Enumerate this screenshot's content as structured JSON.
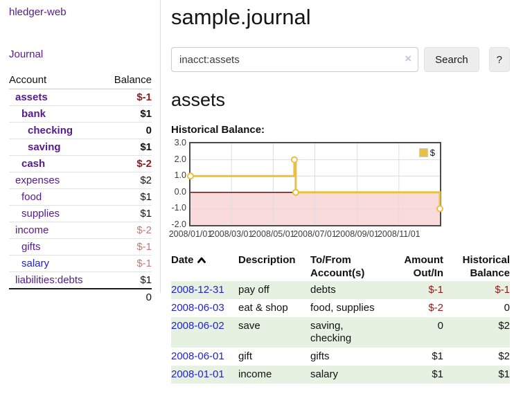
{
  "app": {
    "brand": "hledger-web",
    "nav_journal": "Journal"
  },
  "sidebar": {
    "accounts_header": {
      "account": "Account",
      "balance": "Balance"
    },
    "accounts": [
      {
        "name": "assets",
        "level": 1,
        "balance": "$-1",
        "row_bold": true,
        "neg": "strong",
        "link": "purple"
      },
      {
        "name": "bank",
        "level": 2,
        "balance": "$1",
        "row_bold": true,
        "neg": null,
        "link": "purple"
      },
      {
        "name": "checking",
        "level": 3,
        "balance": "0",
        "row_bold": true,
        "neg": null,
        "link": "purple"
      },
      {
        "name": "saving",
        "level": 3,
        "balance": "$1",
        "row_bold": true,
        "neg": null,
        "link": "purple"
      },
      {
        "name": "cash",
        "level": 2,
        "balance": "$-2",
        "row_bold": true,
        "neg": "strong",
        "link": "purple"
      },
      {
        "name": "expenses",
        "level": 1,
        "balance": "$2",
        "row_bold": false,
        "neg": null,
        "link": "purple"
      },
      {
        "name": "food",
        "level": 2,
        "balance": "$1",
        "row_bold": false,
        "neg": null,
        "link": "purple"
      },
      {
        "name": "supplies",
        "level": 2,
        "balance": "$1",
        "row_bold": false,
        "neg": null,
        "link": "purple"
      },
      {
        "name": "income",
        "level": 1,
        "balance": "$-2",
        "row_bold": false,
        "neg": "soft",
        "link": "purple"
      },
      {
        "name": "gifts",
        "level": 2,
        "balance": "$-1",
        "row_bold": false,
        "neg": "soft",
        "link": "purple"
      },
      {
        "name": "salary",
        "level": 2,
        "balance": "$-1",
        "row_bold": false,
        "neg": "soft",
        "link": "blue"
      },
      {
        "name": "liabilities:debts",
        "level": 1,
        "balance": "$1",
        "row_bold": false,
        "neg": null,
        "link": "purple"
      }
    ],
    "total": "0"
  },
  "header": {
    "title": "sample.journal"
  },
  "search": {
    "value": "inacct:assets",
    "clear_icon": "×",
    "button": "Search",
    "help_button": "?"
  },
  "account_page": {
    "heading": "assets",
    "chart_label": "Historical Balance:"
  },
  "chart_data": {
    "type": "line",
    "steps": true,
    "title": "Historical Balance:",
    "series": [
      {
        "name": "$",
        "points": [
          [
            "2008-01-01",
            1
          ],
          [
            "2008-06-01",
            2
          ],
          [
            "2008-06-03",
            0
          ],
          [
            "2008-12-31",
            -1
          ]
        ]
      }
    ],
    "xlim": [
      "2008-01-01",
      "2008-12-31"
    ],
    "ylim": [
      -2,
      3
    ],
    "x_tick_labels": [
      "2008/01/01",
      "2008/03/01",
      "2008/05/01",
      "2008/07/01",
      "2008/09/01",
      "2008/11/01"
    ],
    "y_tick_labels": [
      "3.0",
      "2.0",
      "1.0",
      "0.0",
      "-1.0",
      "-2.0"
    ],
    "legend": {
      "label": "$",
      "position": "top-right"
    },
    "colors": {
      "series": "#e9c046",
      "marker_fill": "#ffffff",
      "negative_area": "#fadbdb",
      "zero_line": "#8b0000",
      "grid": "#dcdcdc",
      "frame": "#4a4a4a"
    }
  },
  "transactions": {
    "headers": [
      "Date",
      "Description",
      "To/From Account(s)",
      "Amount Out/In",
      "Historical Balance"
    ],
    "rows": [
      {
        "date": "2008-12-31",
        "description": "pay off",
        "accounts": "debts",
        "amount": "$-1",
        "amount_neg": true,
        "balance": "$-1",
        "balance_neg": true,
        "green": true
      },
      {
        "date": "2008-06-03",
        "description": "eat & shop",
        "accounts": "food, supplies",
        "amount": "$-2",
        "amount_neg": true,
        "balance": "0",
        "balance_neg": false,
        "green": false
      },
      {
        "date": "2008-06-02",
        "description": "save",
        "accounts": "saving, checking",
        "amount": "0",
        "amount_neg": false,
        "balance": "$2",
        "balance_neg": false,
        "green": true
      },
      {
        "date": "2008-06-01",
        "description": "gift",
        "accounts": "gifts",
        "amount": "$1",
        "amount_neg": false,
        "balance": "$2",
        "balance_neg": false,
        "green": false
      },
      {
        "date": "2008-01-01",
        "description": "income",
        "accounts": "salary",
        "amount": "$1",
        "amount_neg": false,
        "balance": "$1",
        "balance_neg": false,
        "green": true
      }
    ]
  }
}
